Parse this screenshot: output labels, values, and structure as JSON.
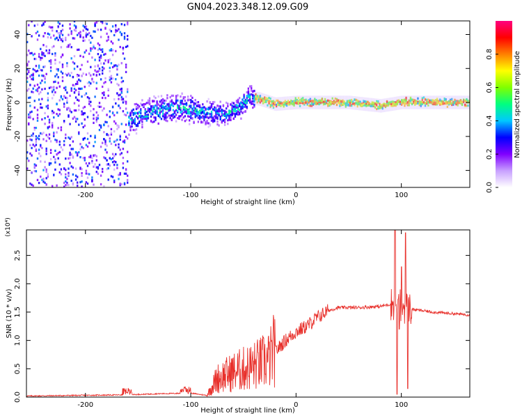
{
  "title": "GN04.2023.348.12.09.G09",
  "colors": {
    "snr_line": "#e8302b"
  },
  "chart_data": [
    {
      "type": "heatmap",
      "xlabel": "Height of straight line (km)",
      "ylabel": "Frequency (Hz)",
      "xlim": [
        -256,
        165
      ],
      "ylim": [
        -50,
        48
      ],
      "xticks": [
        "-200",
        "-100",
        "0",
        "100"
      ],
      "xtick_values": [
        -200,
        -100,
        0,
        100
      ],
      "yticks": [
        "-40",
        "-20",
        "0",
        "20",
        "40"
      ],
      "ytick_values": [
        -40,
        -20,
        0,
        20,
        40
      ],
      "colorbar": {
        "label": "Normalized spectral amplitude",
        "ticks": [
          "0.0",
          "0.2",
          "0.4",
          "0.6",
          "0.8"
        ],
        "tick_values": [
          0.0,
          0.2,
          0.4,
          0.6,
          0.8
        ],
        "colormap": [
          "#ffffff",
          "#c8a0ff",
          "#8000ff",
          "#0000ff",
          "#00c8ff",
          "#00ff80",
          "#80ff00",
          "#ffff00",
          "#ff8000",
          "#ff0000",
          "#ff0080"
        ]
      },
      "ridge": [
        [
          -190,
          -20
        ],
        [
          -170,
          -14
        ],
        [
          -150,
          -8
        ],
        [
          -130,
          -5
        ],
        [
          -110,
          -3
        ],
        [
          -90,
          -6
        ],
        [
          -70,
          -7
        ],
        [
          -55,
          -4
        ],
        [
          -45,
          3
        ],
        [
          -35,
          2
        ],
        [
          -20,
          -1
        ],
        [
          0,
          0
        ],
        [
          20,
          0
        ],
        [
          50,
          0
        ],
        [
          80,
          -2
        ],
        [
          100,
          0
        ],
        [
          165,
          0
        ]
      ],
      "sections": [
        {
          "x": [
            -256,
            -160
          ],
          "spread": 48,
          "amplitude": 0.3,
          "note": "broadband noise"
        },
        {
          "x": [
            -160,
            -95
          ],
          "spread": 12,
          "amplitude": 0.45
        },
        {
          "x": [
            -95,
            -40
          ],
          "spread": 10,
          "amplitude": 0.45
        },
        {
          "x": [
            -40,
            165
          ],
          "spread": 3,
          "amplitude": 0.8
        }
      ]
    },
    {
      "type": "line",
      "xlabel": "Height of straight line (km)",
      "ylabel": "SNR (10 * v/v)",
      "yscale_label": "(x10⁴)",
      "xlim": [
        -256,
        165
      ],
      "ylim": [
        0,
        2.95
      ],
      "xticks": [
        "-200",
        "-100",
        "0",
        "100"
      ],
      "xtick_values": [
        -200,
        -100,
        0,
        100
      ],
      "yticks": [
        "0.0",
        "0.5",
        "1.0",
        "1.5",
        "2.0",
        "2.5"
      ],
      "ytick_values": [
        0.0,
        0.5,
        1.0,
        1.5,
        2.0,
        2.5
      ],
      "trend": [
        [
          -256,
          0.01
        ],
        [
          -160,
          0.03
        ],
        [
          -130,
          0.05
        ],
        [
          -100,
          0.06
        ],
        [
          -85,
          0.02
        ],
        [
          -75,
          0.3
        ],
        [
          -60,
          0.4
        ],
        [
          -40,
          0.5
        ],
        [
          -25,
          0.6
        ],
        [
          -20,
          0.8
        ],
        [
          -10,
          1.0
        ],
        [
          0,
          1.15
        ],
        [
          10,
          1.25
        ],
        [
          20,
          1.4
        ],
        [
          30,
          1.52
        ],
        [
          40,
          1.58
        ],
        [
          60,
          1.58
        ],
        [
          80,
          1.6
        ],
        [
          92,
          1.65
        ],
        [
          110,
          1.55
        ],
        [
          130,
          1.5
        ],
        [
          165,
          1.45
        ]
      ],
      "spikes": [
        [
          94,
          2.95
        ],
        [
          96,
          0.05
        ],
        [
          100,
          2.3
        ],
        [
          104,
          2.9
        ],
        [
          106,
          0.15
        ],
        [
          98,
          1.2
        ]
      ]
    }
  ]
}
